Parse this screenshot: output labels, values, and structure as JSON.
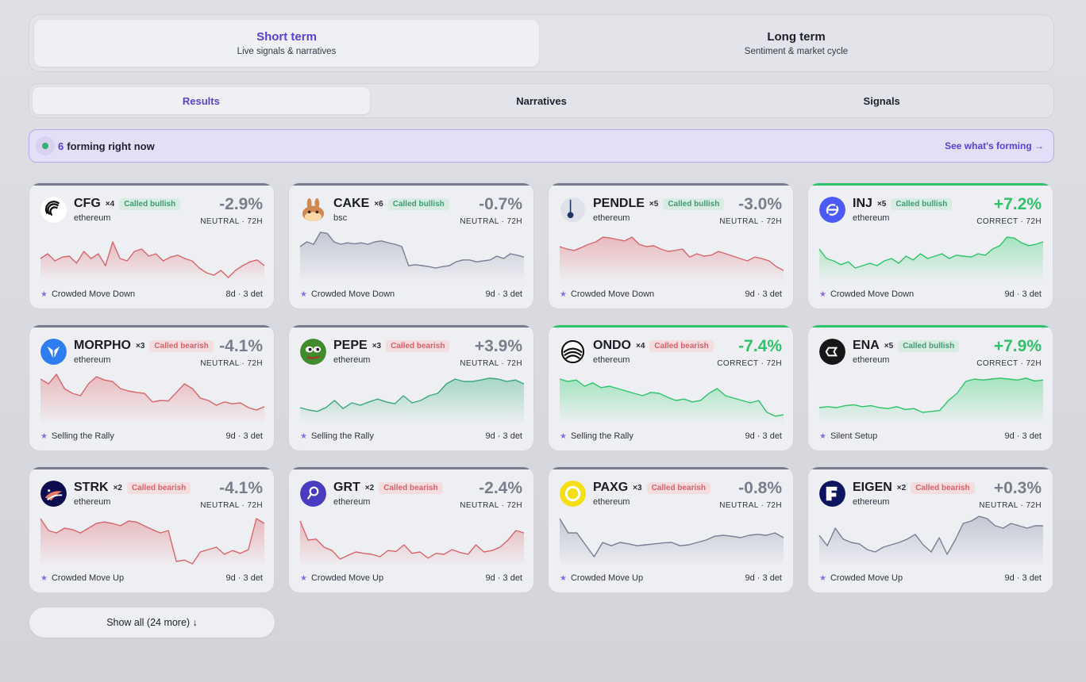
{
  "horizon_tabs": [
    {
      "title": "Short term",
      "subtitle": "Live signals & narratives",
      "active": true
    },
    {
      "title": "Long term",
      "subtitle": "Sentiment & market cycle",
      "active": false
    }
  ],
  "view_tabs": [
    {
      "label": "Results",
      "active": true
    },
    {
      "label": "Narratives",
      "active": false
    },
    {
      "label": "Signals",
      "active": false
    }
  ],
  "forming": {
    "count": "6",
    "text": "forming right now",
    "link": "See what's forming →"
  },
  "colors": {
    "accent": "#5b3fd6",
    "bull": "#3f9b73",
    "bear": "#d8626a",
    "correct": "#2fc26a",
    "neutral_line": "#7b7d94",
    "red_line": "#d6666b",
    "green_line": "#2fc26a"
  },
  "cards": [
    {
      "symbol": "CFG",
      "mult": "×4",
      "call": "Called bullish",
      "call_type": "bull",
      "chain": "ethereum",
      "pct": "-2.9%",
      "outcome": "NEUTRAL · 72H",
      "status": "neutral",
      "narrative": "Crowded Move Down",
      "meta": "8d · 3 det",
      "icon": "cfg-icon",
      "trend": "red",
      "spark": [
        55,
        45,
        60,
        52,
        50,
        65,
        40,
        55,
        45,
        70,
        20,
        55,
        60,
        40,
        35,
        50,
        45,
        60,
        52,
        48,
        55,
        60,
        75,
        85,
        90,
        80,
        95,
        80,
        70,
        62,
        58,
        70
      ]
    },
    {
      "symbol": "CAKE",
      "mult": "×6",
      "call": "Called bullish",
      "call_type": "bull",
      "chain": "bsc",
      "pct": "-0.7%",
      "outcome": "NEUTRAL · 72H",
      "status": "neutral",
      "narrative": "Crowded Move Down",
      "meta": "9d · 3 det",
      "icon": "cake-icon",
      "trend": "gray",
      "spark": [
        30,
        20,
        25,
        0,
        2,
        20,
        25,
        22,
        24,
        22,
        25,
        20,
        18,
        22,
        25,
        30,
        70,
        68,
        70,
        72,
        75,
        72,
        70,
        62,
        58,
        58,
        62,
        60,
        58,
        50,
        55,
        45,
        48,
        52
      ]
    },
    {
      "symbol": "PENDLE",
      "mult": "×5",
      "call": "Called bullish",
      "call_type": "bull",
      "chain": "ethereum",
      "pct": "-3.0%",
      "outcome": "NEUTRAL · 72H",
      "status": "neutral",
      "narrative": "Crowded Move Down",
      "meta": "9d · 3 det",
      "icon": "pendle-icon",
      "trend": "red",
      "spark": [
        30,
        35,
        38,
        32,
        25,
        20,
        10,
        12,
        15,
        18,
        10,
        25,
        30,
        28,
        35,
        40,
        38,
        35,
        52,
        45,
        50,
        48,
        40,
        45,
        50,
        55,
        60,
        52,
        55,
        60,
        72,
        80
      ]
    },
    {
      "symbol": "INJ",
      "mult": "×5",
      "call": "Called bullish",
      "call_type": "bull",
      "chain": "ethereum",
      "pct": "+7.2%",
      "outcome": "CORRECT · 72H",
      "status": "correct",
      "narrative": "Crowded Move Down",
      "meta": "9d · 3 det",
      "icon": "inj-icon",
      "trend": "green",
      "spark": [
        35,
        55,
        60,
        68,
        62,
        75,
        70,
        65,
        70,
        60,
        55,
        65,
        50,
        58,
        45,
        55,
        50,
        45,
        55,
        48,
        50,
        52,
        45,
        48,
        35,
        28,
        10,
        12,
        22,
        28,
        25,
        20
      ]
    },
    {
      "symbol": "MORPHO",
      "mult": "×3",
      "call": "Called bearish",
      "call_type": "bear",
      "chain": "ethereum",
      "pct": "-4.1%",
      "outcome": "NEUTRAL · 72H",
      "status": "neutral",
      "narrative": "Selling the Rally",
      "meta": "9d · 3 det",
      "icon": "morpho-icon",
      "trend": "red",
      "spark": [
        10,
        20,
        0,
        30,
        40,
        45,
        20,
        5,
        12,
        15,
        30,
        35,
        38,
        40,
        58,
        55,
        56,
        38,
        20,
        30,
        50,
        55,
        65,
        58,
        62,
        60,
        70,
        75,
        68
      ]
    },
    {
      "symbol": "PEPE",
      "mult": "×3",
      "call": "Called bearish",
      "call_type": "bear",
      "chain": "ethereum",
      "pct": "+3.9%",
      "outcome": "NEUTRAL · 72H",
      "status": "neutral",
      "narrative": "Selling the Rally",
      "meta": "9d · 3 det",
      "icon": "pepe-icon",
      "trend": "teal",
      "spark": [
        70,
        75,
        78,
        70,
        55,
        72,
        60,
        65,
        58,
        52,
        58,
        62,
        45,
        60,
        55,
        45,
        40,
        20,
        10,
        15,
        15,
        12,
        8,
        10,
        15,
        12,
        20
      ]
    },
    {
      "symbol": "ONDO",
      "mult": "×4",
      "call": "Called bearish",
      "call_type": "bear",
      "chain": "ethereum",
      "pct": "-7.4%",
      "outcome": "CORRECT · 72H",
      "status": "correct",
      "narrative": "Selling the Rally",
      "meta": "9d · 3 det",
      "icon": "ondo-icon",
      "trend": "green",
      "spark": [
        10,
        15,
        12,
        25,
        18,
        28,
        25,
        30,
        35,
        40,
        45,
        38,
        40,
        48,
        55,
        52,
        58,
        55,
        40,
        30,
        45,
        50,
        55,
        60,
        55,
        80,
        88,
        85
      ]
    },
    {
      "symbol": "ENA",
      "mult": "×5",
      "call": "Called bullish",
      "call_type": "bull",
      "chain": "ethereum",
      "pct": "+7.9%",
      "outcome": "CORRECT · 72H",
      "status": "correct",
      "narrative": "Silent Setup",
      "meta": "9d · 3 det",
      "icon": "ena-icon",
      "trend": "green",
      "spark": [
        70,
        68,
        70,
        66,
        64,
        68,
        66,
        70,
        72,
        68,
        74,
        72,
        80,
        78,
        76,
        55,
        40,
        15,
        10,
        12,
        10,
        8,
        10,
        12,
        8,
        14,
        12
      ]
    },
    {
      "symbol": "STRK",
      "mult": "×2",
      "call": "Called bearish",
      "call_type": "bear",
      "chain": "ethereum",
      "pct": "-4.1%",
      "outcome": "NEUTRAL · 72H",
      "status": "neutral",
      "narrative": "Crowded Move Up",
      "meta": "9d · 3 det",
      "icon": "strk-icon",
      "trend": "red",
      "spark": [
        5,
        30,
        35,
        25,
        28,
        35,
        25,
        15,
        12,
        15,
        20,
        10,
        12,
        20,
        28,
        35,
        30,
        95,
        92,
        100,
        75,
        70,
        65,
        80,
        72,
        78,
        70,
        5,
        15
      ]
    },
    {
      "symbol": "GRT",
      "mult": "×2",
      "call": "Called bearish",
      "call_type": "bear",
      "chain": "ethereum",
      "pct": "-2.4%",
      "outcome": "NEUTRAL · 72H",
      "status": "neutral",
      "narrative": "Crowded Move Up",
      "meta": "9d · 3 det",
      "icon": "grt-icon",
      "trend": "red",
      "spark": [
        10,
        50,
        48,
        65,
        72,
        90,
        82,
        75,
        78,
        80,
        85,
        72,
        74,
        60,
        78,
        75,
        88,
        78,
        80,
        70,
        76,
        80,
        60,
        75,
        72,
        65,
        50,
        30,
        35
      ]
    },
    {
      "symbol": "PAXG",
      "mult": "×3",
      "call": "Called bearish",
      "call_type": "bear",
      "chain": "ethereum",
      "pct": "-0.8%",
      "outcome": "NEUTRAL · 72H",
      "status": "neutral",
      "narrative": "Crowded Move Up",
      "meta": "9d · 3 det",
      "icon": "paxg-icon",
      "trend": "gray",
      "spark": [
        5,
        35,
        35,
        60,
        85,
        55,
        62,
        55,
        58,
        62,
        60,
        58,
        56,
        55,
        62,
        60,
        55,
        50,
        42,
        40,
        42,
        45,
        40,
        38,
        40,
        35,
        45
      ]
    },
    {
      "symbol": "EIGEN",
      "mult": "×2",
      "call": "Called bearish",
      "call_type": "bear",
      "chain": "ethereum",
      "pct": "+0.3%",
      "outcome": "NEUTRAL · 72H",
      "status": "neutral",
      "narrative": "Crowded Move Up",
      "meta": "9d · 3 det",
      "icon": "eigen-icon",
      "trend": "gray",
      "spark": [
        40,
        62,
        25,
        48,
        55,
        58,
        70,
        75,
        65,
        60,
        55,
        48,
        38,
        60,
        75,
        45,
        80,
        50,
        15,
        10,
        0,
        5,
        20,
        25,
        15,
        20,
        25,
        20,
        20
      ]
    }
  ],
  "show_all": "Show all (24 more) ↓"
}
